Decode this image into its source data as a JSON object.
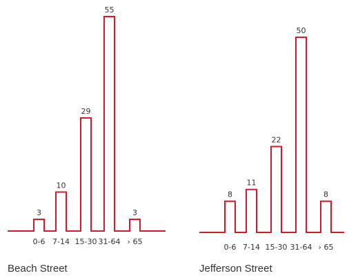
{
  "colors": {
    "line": "#d7192b",
    "text": "#333333",
    "background": "#ffffff"
  },
  "chart_data": [
    {
      "type": "bar",
      "title": "Beach Street",
      "categories": [
        "0-6",
        "7-14",
        "15-30",
        "31-64",
        "› 65"
      ],
      "values": [
        3,
        10,
        29,
        55,
        3
      ],
      "xlabel": "",
      "ylabel": "",
      "ylim": [
        0,
        55
      ],
      "grid": false,
      "legend": "none"
    },
    {
      "type": "bar",
      "title": "Jefferson Street",
      "categories": [
        "0-6",
        "7-14",
        "15-30",
        "31-64",
        "› 65"
      ],
      "values": [
        8,
        11,
        22,
        50,
        8
      ],
      "xlabel": "",
      "ylabel": "",
      "ylim": [
        0,
        50
      ],
      "grid": false,
      "legend": "none"
    }
  ]
}
